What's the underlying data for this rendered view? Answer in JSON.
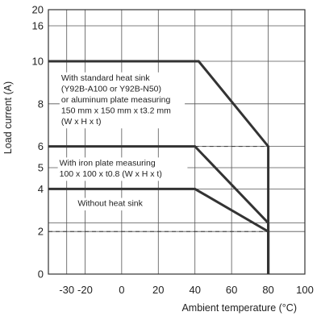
{
  "chart_data": {
    "type": "line",
    "title": "",
    "xlabel": "Ambient temperature (°C)",
    "ylabel": "Load current (A)",
    "xlim": [
      -40,
      100
    ],
    "x_ticks": [
      {
        "value": -30,
        "label": "-30"
      },
      {
        "value": -20,
        "label": "-20"
      },
      {
        "value": 0,
        "label": "0"
      },
      {
        "value": 20,
        "label": "20"
      },
      {
        "value": 40,
        "label": "40"
      },
      {
        "value": 60,
        "label": "60"
      },
      {
        "value": 80,
        "label": "80"
      },
      {
        "value": 100,
        "label": "100"
      }
    ],
    "y_ticks": [
      {
        "value": 0,
        "label": "0"
      },
      {
        "value": 2,
        "label": "2"
      },
      {
        "value": 4,
        "label": "4"
      },
      {
        "value": 5,
        "label": "5"
      },
      {
        "value": 6,
        "label": "6"
      },
      {
        "value": 8,
        "label": "8"
      },
      {
        "value": 10,
        "label": "10"
      },
      {
        "value": 16,
        "label": "16"
      },
      {
        "value": 20,
        "label": "20"
      }
    ],
    "y_scale_note": "non-linear axis: 0–10 evenly spaced, compressed above 10",
    "grid": true,
    "series": [
      {
        "values_xy": [
          [
            -40,
            10
          ],
          [
            42,
            10
          ],
          [
            80,
            6
          ],
          [
            80,
            0
          ]
        ],
        "color": "#333333"
      },
      {
        "values_xy": [
          [
            -40,
            6
          ],
          [
            40,
            6
          ],
          [
            80,
            2.4
          ],
          [
            80,
            0
          ]
        ],
        "color": "#333333"
      },
      {
        "values_xy": [
          [
            -40,
            4
          ],
          [
            40,
            4
          ],
          [
            80,
            2
          ],
          [
            80,
            0
          ]
        ],
        "color": "#333333"
      }
    ],
    "reference_lines": [
      {
        "y": 6,
        "from_x": 40,
        "to_x": 80,
        "style": "dashed"
      },
      {
        "y": 2,
        "from_x": -40,
        "to_x": 80,
        "style": "dashed"
      }
    ],
    "annotations": [
      {
        "lines": [
          "With standard heat sink",
          "(Y92B-A100 or Y92B-N50)",
          "or aluminum plate measuring",
          "150 mm x 150 mm x t3.2 mm",
          "(W x H x t)"
        ]
      },
      {
        "lines": [
          "With iron plate measuring",
          "100 x 100 x t0.8 (W x H x t)"
        ]
      },
      {
        "lines": [
          "Without heat sink"
        ]
      }
    ]
  }
}
